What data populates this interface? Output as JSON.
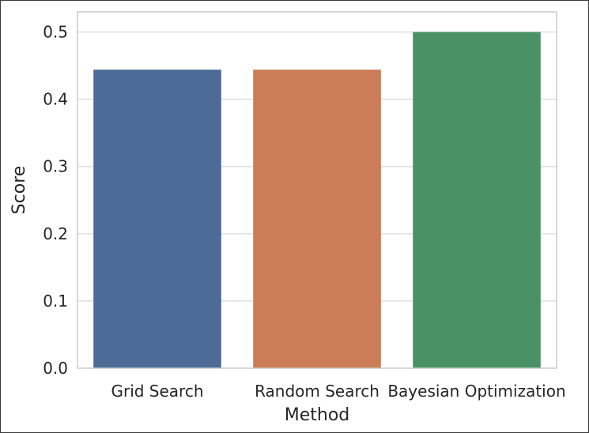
{
  "chart_data": {
    "type": "bar",
    "categories": [
      "Grid Search",
      "Random Search",
      "Bayesian Optimization"
    ],
    "values": [
      0.444,
      0.444,
      0.5
    ],
    "bar_colors": [
      "#4c6b97",
      "#cc7c57",
      "#4a9266"
    ],
    "xlabel": "Method",
    "ylabel": "Score",
    "ylim": [
      0,
      0.53
    ],
    "yticks": [
      0.0,
      0.1,
      0.2,
      0.3,
      0.4,
      0.5
    ],
    "ytick_labels": [
      "0.0",
      "0.1",
      "0.2",
      "0.3",
      "0.4",
      "0.5"
    ],
    "grid": "horizontal",
    "gridline_color": "#d9d9d9",
    "frame_color": "#cccccc"
  }
}
